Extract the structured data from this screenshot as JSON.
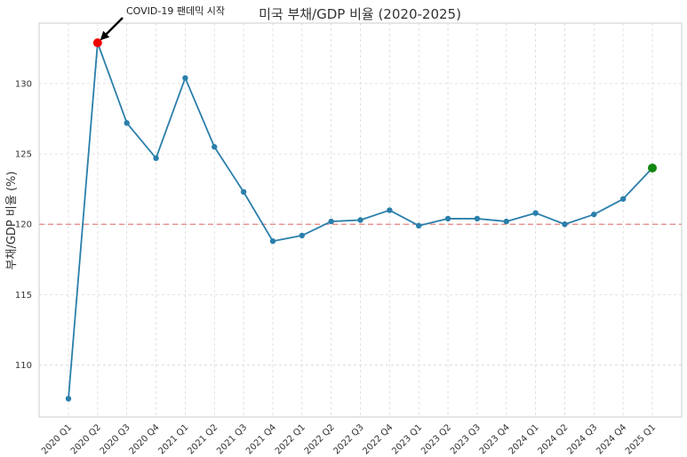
{
  "chart_data": {
    "type": "line",
    "title": "미국 부채/GDP 비율 (2020-2025)",
    "xlabel": "",
    "ylabel": "부채/GDP 비율 (%)",
    "categories": [
      "2020 Q1",
      "2020 Q2",
      "2020 Q3",
      "2020 Q4",
      "2021 Q1",
      "2021 Q2",
      "2021 Q3",
      "2021 Q4",
      "2022 Q1",
      "2022 Q2",
      "2022 Q3",
      "2022 Q4",
      "2023 Q1",
      "2023 Q2",
      "2023 Q3",
      "2023 Q4",
      "2024 Q1",
      "2024 Q2",
      "2024 Q3",
      "2024 Q4",
      "2025 Q1"
    ],
    "series": [
      {
        "values": [
          107.6,
          132.9,
          127.2,
          124.7,
          130.4,
          125.5,
          122.3,
          118.8,
          119.2,
          120.2,
          120.3,
          121.0,
          119.9,
          120.4,
          120.4,
          120.2,
          120.8,
          120.0,
          120.7,
          121.8,
          124.0
        ],
        "color": "#2a7fab"
      }
    ],
    "yticks": [
      110,
      115,
      120,
      125,
      130
    ],
    "ylim": [
      106.3,
      134.3
    ],
    "grid": true,
    "reference_line": {
      "y": 120,
      "color": "#e8807a",
      "style": "dashed"
    },
    "highlights": [
      {
        "category": "2020 Q2",
        "color": "#ee0000",
        "note": "peak"
      },
      {
        "category": "2025 Q1",
        "color": "#118811",
        "note": "latest"
      }
    ],
    "annotation": {
      "text": "COVID-19 팬데믹 시작",
      "target_category": "2020 Q2"
    }
  }
}
